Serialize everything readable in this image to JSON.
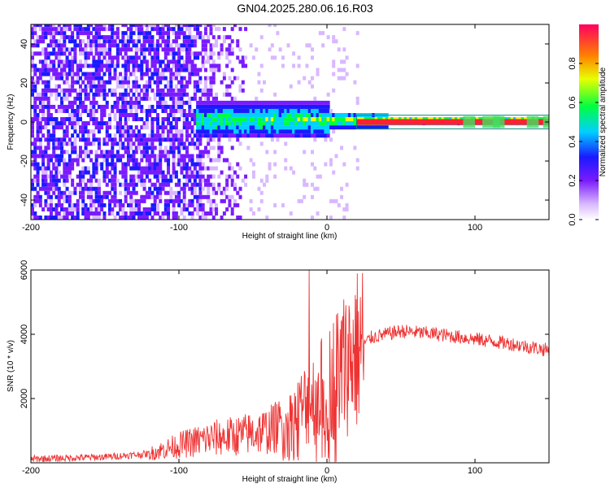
{
  "title": "GN04.2025.280.06.16.R03",
  "chart_data": [
    {
      "type": "heatmap",
      "xlabel": "Height of straight line (km)",
      "ylabel": "Frequency (Hz)",
      "xlim": [
        -200,
        150
      ],
      "ylim": [
        -50,
        50
      ],
      "xticks": [
        "-200",
        "-100",
        "0",
        "100"
      ],
      "yticks": [
        "-40",
        "-20",
        "0",
        "20",
        "40"
      ],
      "colorbar": {
        "label": "Normalized spectral amplitude",
        "range": [
          0,
          1
        ],
        "ticks": [
          "0.0",
          "0.2",
          "0.4",
          "0.6",
          "0.8"
        ]
      },
      "features": {
        "noise_region_km": [
          -200,
          -85
        ],
        "fade_region_km": [
          -85,
          -55
        ],
        "signal_line_freq_hz": 0,
        "signal_onset_km": -90
      }
    },
    {
      "type": "line",
      "xlabel": "Height of straight line (km)",
      "ylabel": "SNR (10 * v/v)",
      "xlim": [
        -200,
        150
      ],
      "ylim": [
        0,
        6000
      ],
      "xticks": [
        "-200",
        "-100",
        "0",
        "100"
      ],
      "yticks": [
        "2000",
        "4000",
        "6000"
      ],
      "color": "#ee3333",
      "trend_points": [
        {
          "x": -200,
          "y": 120
        },
        {
          "x": -150,
          "y": 180
        },
        {
          "x": -120,
          "y": 280
        },
        {
          "x": -100,
          "y": 550
        },
        {
          "x": -80,
          "y": 750
        },
        {
          "x": -60,
          "y": 850
        },
        {
          "x": -40,
          "y": 1000
        },
        {
          "x": -25,
          "y": 1300
        },
        {
          "x": -15,
          "y": 1800
        },
        {
          "x": 0,
          "y": 2400
        },
        {
          "x": 15,
          "y": 3300
        },
        {
          "x": 30,
          "y": 3900
        },
        {
          "x": 50,
          "y": 4100
        },
        {
          "x": 75,
          "y": 4000
        },
        {
          "x": 100,
          "y": 3850
        },
        {
          "x": 125,
          "y": 3700
        },
        {
          "x": 150,
          "y": 3500
        }
      ],
      "spike": {
        "x": -12,
        "y": 6000
      }
    }
  ]
}
